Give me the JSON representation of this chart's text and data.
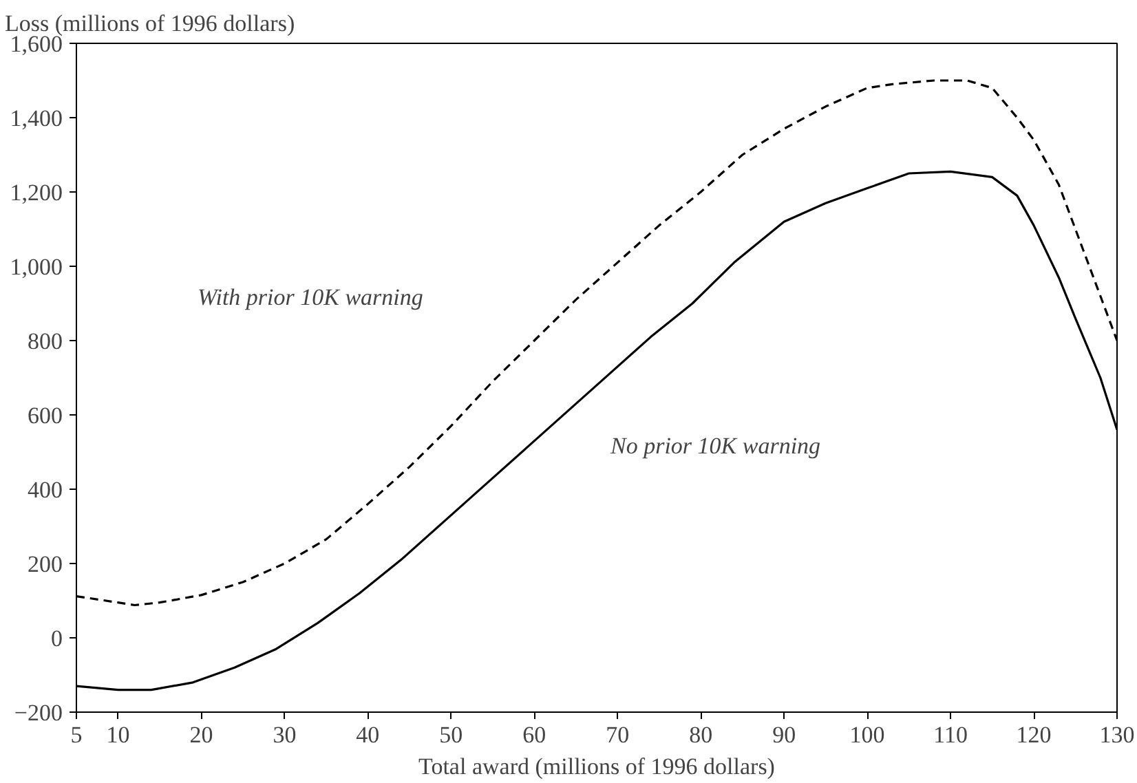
{
  "chart_data": {
    "type": "line",
    "xlabel": "Total award (millions of 1996 dollars)",
    "ylabel": "Loss (millions of 1996 dollars)",
    "xlim": [
      5,
      130
    ],
    "ylim": [
      -200,
      1600
    ],
    "xticks": [
      5,
      10,
      20,
      30,
      40,
      50,
      60,
      70,
      80,
      90,
      100,
      110,
      120,
      130
    ],
    "yticks": [
      {
        "value": -200,
        "label": "−200"
      },
      0,
      200,
      400,
      600,
      800,
      {
        "value": 1000,
        "label": "1,000"
      },
      {
        "value": 1200,
        "label": "1,200"
      },
      {
        "value": 1400,
        "label": "1,400"
      },
      {
        "value": 1600,
        "label": "1,600"
      }
    ],
    "grid": false,
    "marker": "none",
    "series": [
      {
        "color": "#000000",
        "line_style": "dashed",
        "x": [
          5,
          10,
          12,
          15,
          20,
          25,
          30,
          35,
          40,
          45,
          50,
          55,
          60,
          65,
          70,
          75,
          80,
          85,
          90,
          95,
          100,
          103,
          108,
          112,
          115,
          118,
          120,
          123,
          125,
          128,
          130
        ],
        "values": [
          112,
          95,
          88,
          95,
          115,
          150,
          200,
          265,
          360,
          460,
          570,
          690,
          800,
          910,
          1010,
          1110,
          1200,
          1300,
          1370,
          1430,
          1480,
          1490,
          1500,
          1500,
          1480,
          1400,
          1340,
          1220,
          1100,
          920,
          800
        ]
      },
      {
        "color": "#000000",
        "line_style": "solid",
        "x": [
          5,
          10,
          14,
          19,
          24,
          29,
          34,
          39,
          44,
          49,
          54,
          59,
          64,
          69,
          74,
          79,
          84,
          90,
          95,
          100,
          105,
          110,
          115,
          118,
          120,
          123,
          125,
          128,
          130
        ],
        "values": [
          -130,
          -140,
          -140,
          -120,
          -80,
          -30,
          40,
          120,
          210,
          310,
          410,
          510,
          610,
          710,
          810,
          900,
          1010,
          1120,
          1170,
          1210,
          1250,
          1255,
          1240,
          1190,
          1110,
          970,
          860,
          700,
          560
        ]
      }
    ],
    "annotations": [
      "With prior 10K warning",
      "No prior 10K warning"
    ]
  }
}
